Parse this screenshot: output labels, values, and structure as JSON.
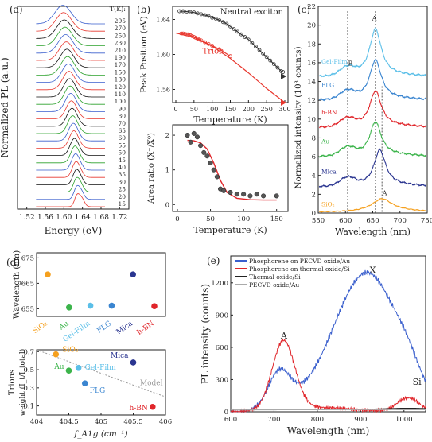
{
  "panels": [
    {
      "id": "a",
      "label": "(a)",
      "chart_data": {
        "type": "line",
        "xlabel": "Energy (eV)",
        "ylabel": "Normalized PL (a.u.)",
        "xlim": [
          1.5,
          1.74
        ],
        "xticks": [
          "1.52",
          "1.56",
          "1.60",
          "1.64",
          "1.68",
          "1.72"
        ],
        "legend_title": "T(K):",
        "temperatures": [
          "295",
          "270",
          "250",
          "230",
          "210",
          "190",
          "170",
          "150",
          "130",
          "120",
          "110",
          "100",
          "90",
          "80",
          "70",
          "65",
          "60",
          "55",
          "50",
          "45",
          "40",
          "35",
          "30",
          "25",
          "20",
          "15"
        ],
        "series_colors": [
          "#3a5fcd",
          "#e8372e",
          "#111111",
          "#2aa02a",
          "#3a5fcd",
          "#e8372e",
          "#111111",
          "#2aa02a",
          "#3a5fcd",
          "#e8372e",
          "#111111",
          "#2aa02a",
          "#3a5fcd",
          "#e8372e",
          "#111111",
          "#2aa02a",
          "#3a5fcd",
          "#e8372e",
          "#111111",
          "#2aa02a",
          "#3a5fcd",
          "#e8372e",
          "#111111",
          "#2aa02a",
          "#3a5fcd",
          "#e8372e"
        ]
      }
    },
    {
      "id": "b",
      "label": "(b)",
      "charts": [
        {
          "type": "line",
          "xlabel": "Temperature (K)",
          "ylabel": "Peak Position (eV)",
          "xlim": [
            0,
            300
          ],
          "ylim": [
            1.545,
            1.655
          ],
          "xticks": [
            "0",
            "50",
            "100",
            "150",
            "200",
            "250",
            "300"
          ],
          "yticks": [
            "1.56",
            "1.60",
            "1.64"
          ],
          "series": [
            {
              "name": "Neutral exciton",
              "color": "#333333",
              "x": [
                10,
                20,
                30,
                40,
                50,
                60,
                70,
                80,
                90,
                100,
                110,
                120,
                130,
                140,
                150,
                160,
                170,
                180,
                190,
                200,
                210,
                220,
                230,
                240,
                250,
                260,
                270,
                280,
                290,
                295
              ],
              "y": [
                1.6495,
                1.6495,
                1.649,
                1.6485,
                1.648,
                1.647,
                1.646,
                1.645,
                1.644,
                1.642,
                1.641,
                1.639,
                1.637,
                1.635,
                1.632,
                1.629,
                1.626,
                1.623,
                1.62,
                1.617,
                1.613,
                1.609,
                1.605,
                1.601,
                1.597,
                1.593,
                1.589,
                1.585,
                1.581,
                1.58
              ]
            },
            {
              "name": "Trion",
              "color": "#e8372e",
              "x": [
                15,
                20,
                25,
                30,
                35,
                40,
                45,
                50,
                55,
                60,
                65,
                70,
                80,
                90,
                100,
                120,
                150
              ],
              "y": [
                1.624,
                1.624,
                1.6235,
                1.623,
                1.623,
                1.622,
                1.621,
                1.62,
                1.619,
                1.618,
                1.617,
                1.616,
                1.614,
                1.612,
                1.61,
                1.606,
                1.598
              ]
            }
          ],
          "trion_fit": {
            "x": [
              0,
              50,
              100,
              150,
              200,
              250,
              300
            ],
            "y": [
              1.6245,
              1.6195,
              1.6095,
              1.5955,
              1.579,
              1.561,
              1.545
            ]
          }
        },
        {
          "type": "scatter",
          "xlabel": "Temperature (K)",
          "ylabel": "Area ratio (X⁻/X⁰)",
          "xlim": [
            0,
            160
          ],
          "ylim": [
            -0.2,
            2.3
          ],
          "xticks": [
            "0",
            "50",
            "100",
            "150"
          ],
          "yticks": [
            "0",
            "1",
            "2"
          ],
          "points": {
            "x": [
              15,
              20,
              25,
              30,
              35,
              40,
              45,
              50,
              55,
              60,
              65,
              70,
              80,
              90,
              100,
              110,
              120,
              130,
              150
            ],
            "y": [
              2.0,
              1.8,
              2.05,
              1.95,
              1.7,
              1.5,
              1.4,
              1.2,
              1.0,
              0.8,
              0.45,
              0.4,
              0.35,
              0.3,
              0.3,
              0.25,
              0.3,
              0.25,
              0.25
            ]
          },
          "fit": {
            "x": [
              15,
              25,
              35,
              45,
              55,
              60,
              65,
              75,
              90,
              110,
              130,
              150
            ],
            "y": [
              1.85,
              1.84,
              1.78,
              1.6,
              1.2,
              0.95,
              0.7,
              0.35,
              0.18,
              0.14,
              0.13,
              0.13
            ]
          }
        }
      ]
    },
    {
      "id": "c",
      "label": "(c)",
      "chart_data": {
        "type": "line",
        "xlabel": "Wavelength (nm)",
        "ylabel": "Normalized intensity (10³ counts)",
        "xlim": [
          550,
          750
        ],
        "ylim": [
          0,
          22
        ],
        "xticks": [
          "550",
          "600",
          "650",
          "700",
          "750"
        ],
        "yticks": [
          "0",
          "2",
          "4",
          "6",
          "8",
          "10",
          "12",
          "14",
          "16",
          "18",
          "20",
          "22"
        ],
        "series": [
          {
            "name": "Gel-Film",
            "color": "#5bbfe8",
            "offset": 14.5,
            "peak": 5.0
          },
          {
            "name": "FLG",
            "color": "#3a85d0",
            "offset": 12.0,
            "peak": 4.2
          },
          {
            "name": "h-BN",
            "color": "#e0252a",
            "offset": 9.1,
            "peak": 3.8
          },
          {
            "name": "Au",
            "color": "#3cb44b",
            "offset": 6.0,
            "peak": 3.6
          },
          {
            "name": "Mica",
            "color": "#2a3590",
            "offset": 2.8,
            "peak": 3.8
          },
          {
            "name": "SiO₂",
            "color": "#f5a01e",
            "offset": 0.1,
            "peak": 1.3
          }
        ],
        "annotations": [
          "A",
          "B",
          "A⁻"
        ],
        "dashed_lines_nm": [
          604,
          655,
          667
        ]
      }
    },
    {
      "id": "d",
      "label": "(d)",
      "top": {
        "type": "scatter",
        "ylabel": "Wavelength (nm)",
        "ylim": [
          652,
          677
        ],
        "yticks": [
          "655",
          "665",
          "675"
        ],
        "points": [
          {
            "name": "SiO₂",
            "color": "#f5a01e",
            "y": 668.5
          },
          {
            "name": "Au",
            "color": "#3cb44b",
            "y": 655.5
          },
          {
            "name": "Gel-Film",
            "color": "#5bbfe8",
            "y": 656.2
          },
          {
            "name": "FLG",
            "color": "#3a85d0",
            "y": 656.2
          },
          {
            "name": "Mica",
            "color": "#2a3590",
            "y": 668.5
          },
          {
            "name": "h-BN",
            "color": "#e0252a",
            "y": 656.0
          }
        ]
      },
      "bottom": {
        "type": "scatter",
        "xlabel": "f_A1g (cm⁻¹)",
        "ylabel": "Trions weight (I_t / I_total)",
        "xlim": [
          404.0,
          406.0
        ],
        "ylim": [
          0.0,
          0.72
        ],
        "xticks": [
          "404",
          "404.5",
          "405",
          "405.5",
          "406"
        ],
        "yticks": [
          "0.1",
          "0.3",
          "0.5",
          "0.7"
        ],
        "points": [
          {
            "name": "SiO₂",
            "color": "#f5a01e",
            "x": 404.3,
            "y": 0.67
          },
          {
            "name": "Au",
            "color": "#3cb44b",
            "x": 404.5,
            "y": 0.49
          },
          {
            "name": "Gel-Film",
            "color": "#5bbfe8",
            "x": 404.65,
            "y": 0.52
          },
          {
            "name": "FLG",
            "color": "#3a85d0",
            "x": 404.75,
            "y": 0.35
          },
          {
            "name": "Mica",
            "color": "#2a3590",
            "x": 405.5,
            "y": 0.58
          },
          {
            "name": "h-BN",
            "color": "#e0252a",
            "x": 405.8,
            "y": 0.09
          }
        ],
        "model_label": "Model",
        "model": {
          "x": [
            404.0,
            406.0
          ],
          "y": [
            0.72,
            0.2
          ]
        }
      }
    },
    {
      "id": "e",
      "label": "(e)",
      "chart_data": {
        "type": "line",
        "xlabel": "Wavelength (nm)",
        "ylabel": "PL intensity (counts)",
        "xlim": [
          600,
          1050
        ],
        "ylim": [
          0,
          1450
        ],
        "xticks": [
          "600",
          "700",
          "800",
          "900",
          "1000"
        ],
        "yticks": [
          "0",
          "300",
          "600",
          "900",
          "1200"
        ],
        "series": [
          {
            "name": "Phosphorene on PECVD oxide/Au",
            "color": "#3a5fcd"
          },
          {
            "name": "Phosphorene on thermal oxide/Si",
            "color": "#e0252a"
          },
          {
            "name": "Thermal oxide/Si",
            "color": "#222222"
          },
          {
            "name": "PECVD oxide/Au",
            "color": "#aaaaaa"
          }
        ],
        "annotations": [
          "X",
          "A",
          "Si"
        ]
      }
    }
  ]
}
